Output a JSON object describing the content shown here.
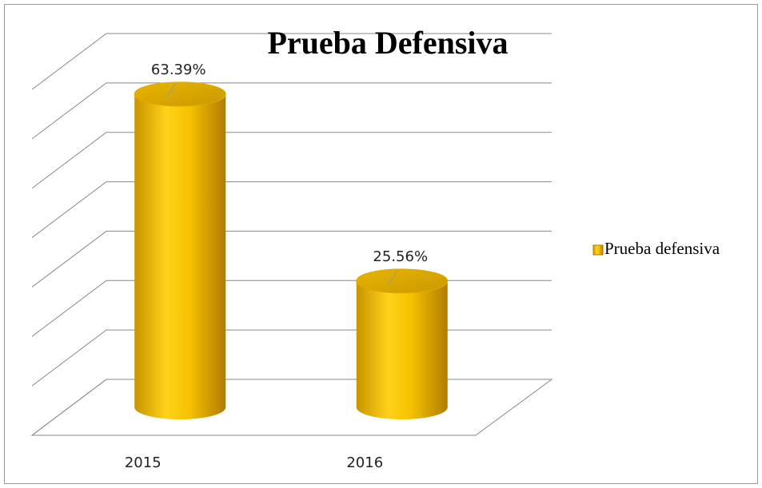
{
  "chart_data": {
    "type": "bar",
    "title": "Prueba Defensiva",
    "categories": [
      "2015",
      "2016"
    ],
    "series": [
      {
        "name": "Prueba defensiva",
        "color": "#f5c000",
        "values": [
          63.39,
          25.56
        ],
        "value_labels": [
          "63.39%",
          "25.56%"
        ]
      }
    ],
    "ylim": [
      0,
      70
    ],
    "yticks": [
      0,
      10,
      20,
      30,
      40,
      50,
      60,
      70
    ],
    "grid": true,
    "legend": "right"
  }
}
